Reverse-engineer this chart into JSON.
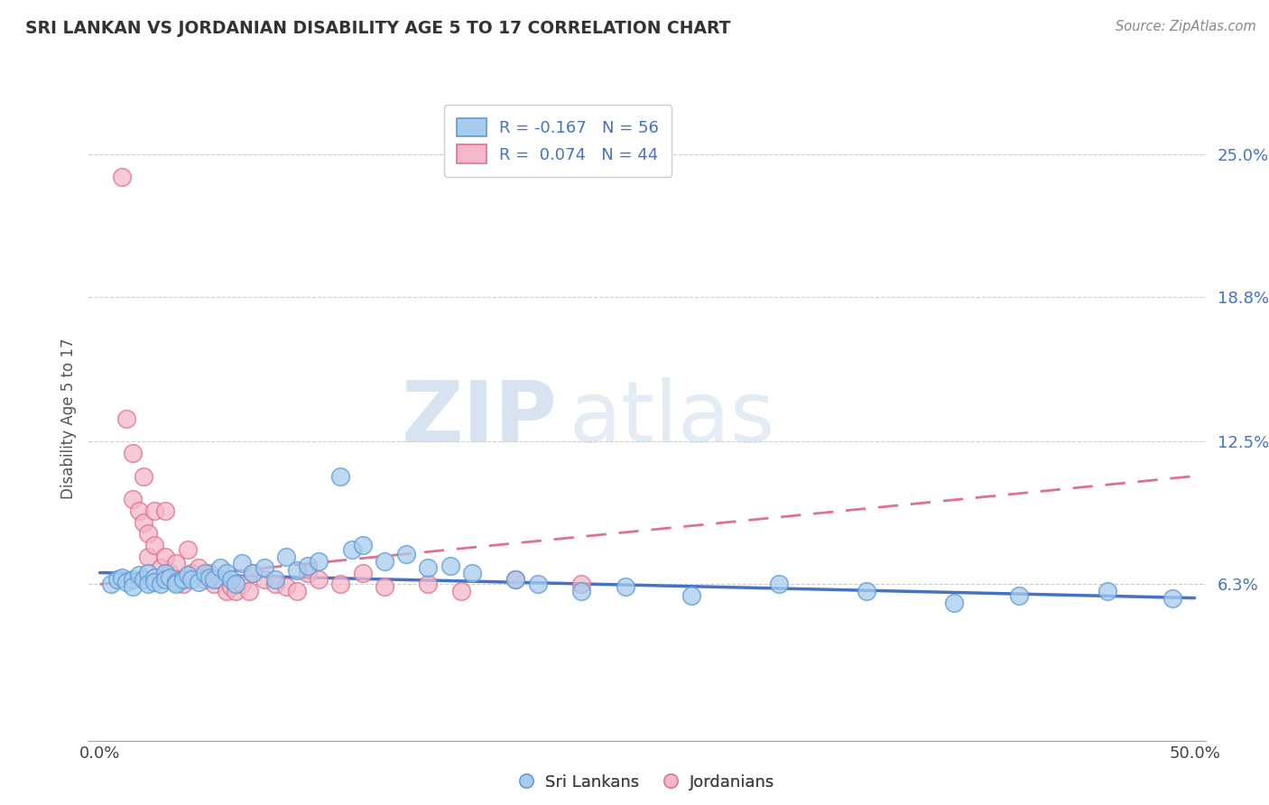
{
  "title": "SRI LANKAN VS JORDANIAN DISABILITY AGE 5 TO 17 CORRELATION CHART",
  "source": "Source: ZipAtlas.com",
  "ylabel": "Disability Age 5 to 17",
  "y_ticks_right": [
    0.0,
    0.063,
    0.125,
    0.188,
    0.25
  ],
  "y_tick_labels_right": [
    "",
    "6.3%",
    "12.5%",
    "18.8%",
    "25.0%"
  ],
  "xlim": [
    -0.005,
    0.505
  ],
  "ylim": [
    -0.005,
    0.275
  ],
  "sri_lankan_fill": "#A8CCEE",
  "sri_lankan_edge": "#5B9BD5",
  "jordanian_fill": "#F4B8C8",
  "jordanian_edge": "#E07090",
  "trend_sri_color": "#4472C4",
  "trend_jordan_color": "#E07090",
  "legend_label_sri": "R = -0.167   N = 56",
  "legend_label_jor": "R =  0.074   N = 44",
  "watermark_zip": "ZIP",
  "watermark_atlas": "atlas",
  "sri_lankans_x": [
    0.005,
    0.008,
    0.01,
    0.012,
    0.015,
    0.015,
    0.018,
    0.02,
    0.022,
    0.022,
    0.025,
    0.025,
    0.028,
    0.03,
    0.03,
    0.032,
    0.035,
    0.035,
    0.038,
    0.04,
    0.042,
    0.045,
    0.048,
    0.05,
    0.052,
    0.055,
    0.058,
    0.06,
    0.062,
    0.065,
    0.07,
    0.075,
    0.08,
    0.085,
    0.09,
    0.095,
    0.1,
    0.11,
    0.115,
    0.12,
    0.13,
    0.14,
    0.15,
    0.16,
    0.17,
    0.19,
    0.2,
    0.22,
    0.24,
    0.27,
    0.31,
    0.35,
    0.39,
    0.42,
    0.46,
    0.49
  ],
  "sri_lankans_y": [
    0.063,
    0.065,
    0.066,
    0.064,
    0.065,
    0.062,
    0.067,
    0.065,
    0.068,
    0.063,
    0.066,
    0.064,
    0.063,
    0.068,
    0.065,
    0.066,
    0.064,
    0.063,
    0.065,
    0.067,
    0.065,
    0.064,
    0.068,
    0.066,
    0.065,
    0.07,
    0.068,
    0.065,
    0.063,
    0.072,
    0.068,
    0.07,
    0.065,
    0.075,
    0.069,
    0.071,
    0.073,
    0.11,
    0.078,
    0.08,
    0.073,
    0.076,
    0.07,
    0.071,
    0.068,
    0.065,
    0.063,
    0.06,
    0.062,
    0.058,
    0.063,
    0.06,
    0.055,
    0.058,
    0.06,
    0.057
  ],
  "jordanians_x": [
    0.01,
    0.012,
    0.015,
    0.015,
    0.018,
    0.02,
    0.02,
    0.022,
    0.022,
    0.025,
    0.025,
    0.028,
    0.03,
    0.03,
    0.032,
    0.035,
    0.035,
    0.038,
    0.04,
    0.042,
    0.045,
    0.048,
    0.05,
    0.052,
    0.055,
    0.058,
    0.06,
    0.062,
    0.065,
    0.068,
    0.07,
    0.075,
    0.08,
    0.085,
    0.09,
    0.095,
    0.1,
    0.11,
    0.12,
    0.13,
    0.15,
    0.165,
    0.19,
    0.22
  ],
  "jordanians_y": [
    0.24,
    0.135,
    0.12,
    0.1,
    0.095,
    0.09,
    0.11,
    0.085,
    0.075,
    0.095,
    0.08,
    0.07,
    0.095,
    0.075,
    0.068,
    0.072,
    0.065,
    0.063,
    0.078,
    0.068,
    0.07,
    0.065,
    0.068,
    0.063,
    0.065,
    0.06,
    0.062,
    0.06,
    0.063,
    0.06,
    0.068,
    0.065,
    0.063,
    0.062,
    0.06,
    0.068,
    0.065,
    0.063,
    0.068,
    0.062,
    0.063,
    0.06,
    0.065,
    0.063
  ],
  "trend_sri_x0": 0.0,
  "trend_sri_x1": 0.5,
  "trend_sri_y0": 0.068,
  "trend_sri_y1": 0.057,
  "trend_jor_x0": 0.0,
  "trend_jor_x1": 0.5,
  "trend_jor_y0": 0.063,
  "trend_jor_y1": 0.11
}
